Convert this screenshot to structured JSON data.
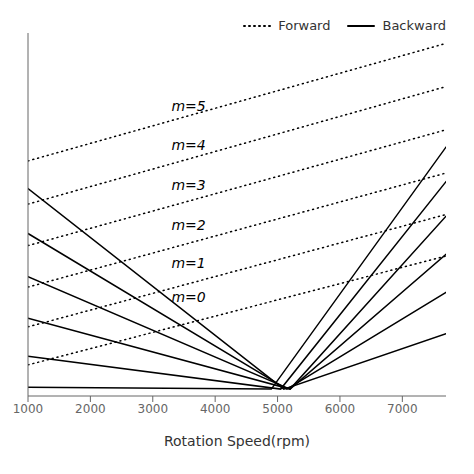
{
  "chart_data": {
    "type": "line",
    "xlabel": "Rotation Speed(rpm)",
    "xlim": [
      1000,
      7700
    ],
    "ylim": [
      0.0,
      1.05
    ],
    "xticks": [
      1000,
      2000,
      3000,
      4000,
      5000,
      6000,
      7000
    ],
    "tick_labels": "x",
    "legend": "upper right",
    "grid": false,
    "series": [
      {
        "name": "Forward",
        "line_style": "dotted",
        "color": "#000000",
        "x": [
          1000,
          7700
        ],
        "values": [
          0.68,
          1.02
        ]
      },
      {
        "name": "Forward",
        "line_style": "dotted",
        "color": "#000000",
        "x": [
          1000,
          7700
        ],
        "values": [
          0.555,
          0.895
        ]
      },
      {
        "name": "Forward",
        "line_style": "dotted",
        "color": "#000000",
        "x": [
          1000,
          7700
        ],
        "values": [
          0.435,
          0.77
        ]
      },
      {
        "name": "Forward",
        "line_style": "dotted",
        "color": "#000000",
        "x": [
          1000,
          7700
        ],
        "values": [
          0.315,
          0.645
        ]
      },
      {
        "name": "Forward",
        "line_style": "dotted",
        "color": "#000000",
        "x": [
          1000,
          7700
        ],
        "values": [
          0.2,
          0.525
        ]
      },
      {
        "name": "Forward",
        "line_style": "dotted",
        "color": "#000000",
        "x": [
          1000,
          7700
        ],
        "values": [
          0.09,
          0.405
        ]
      },
      {
        "name": "Backward",
        "line_style": "solid",
        "color": "#000000",
        "x": [
          1000,
          5100,
          7700
        ],
        "values": [
          0.6,
          0.02,
          0.18
        ]
      },
      {
        "name": "Backward",
        "line_style": "solid",
        "color": "#000000",
        "x": [
          1000,
          5150,
          7700
        ],
        "values": [
          0.47,
          0.02,
          0.3
        ]
      },
      {
        "name": "Backward",
        "line_style": "solid",
        "color": "#000000",
        "x": [
          1000,
          5200,
          7700
        ],
        "values": [
          0.345,
          0.02,
          0.41
        ]
      },
      {
        "name": "Backward",
        "line_style": "solid",
        "color": "#000000",
        "x": [
          1000,
          5200,
          7700
        ],
        "values": [
          0.225,
          0.02,
          0.52
        ]
      },
      {
        "name": "Backward",
        "line_style": "solid",
        "color": "#000000",
        "x": [
          1000,
          5050,
          7700
        ],
        "values": [
          0.115,
          0.02,
          0.62
        ]
      },
      {
        "name": "Backward",
        "line_style": "solid",
        "color": "#000000",
        "x": [
          1000,
          4900,
          7700
        ],
        "values": [
          0.025,
          0.02,
          0.72
        ]
      }
    ],
    "annotations": [
      {
        "text": "m=5",
        "x": 3300,
        "y": 0.84,
        "color": "#000000"
      },
      {
        "text": "m=4",
        "x": 3300,
        "y": 0.725,
        "color": "#000000"
      },
      {
        "text": "m=3",
        "x": 3300,
        "y": 0.61,
        "color": "#000000"
      },
      {
        "text": "m=2",
        "x": 3300,
        "y": 0.495,
        "color": "#000000"
      },
      {
        "text": "m=1",
        "x": 3300,
        "y": 0.385,
        "color": "#000000"
      },
      {
        "text": "m=0",
        "x": 3300,
        "y": 0.285,
        "color": "#000000"
      }
    ]
  }
}
